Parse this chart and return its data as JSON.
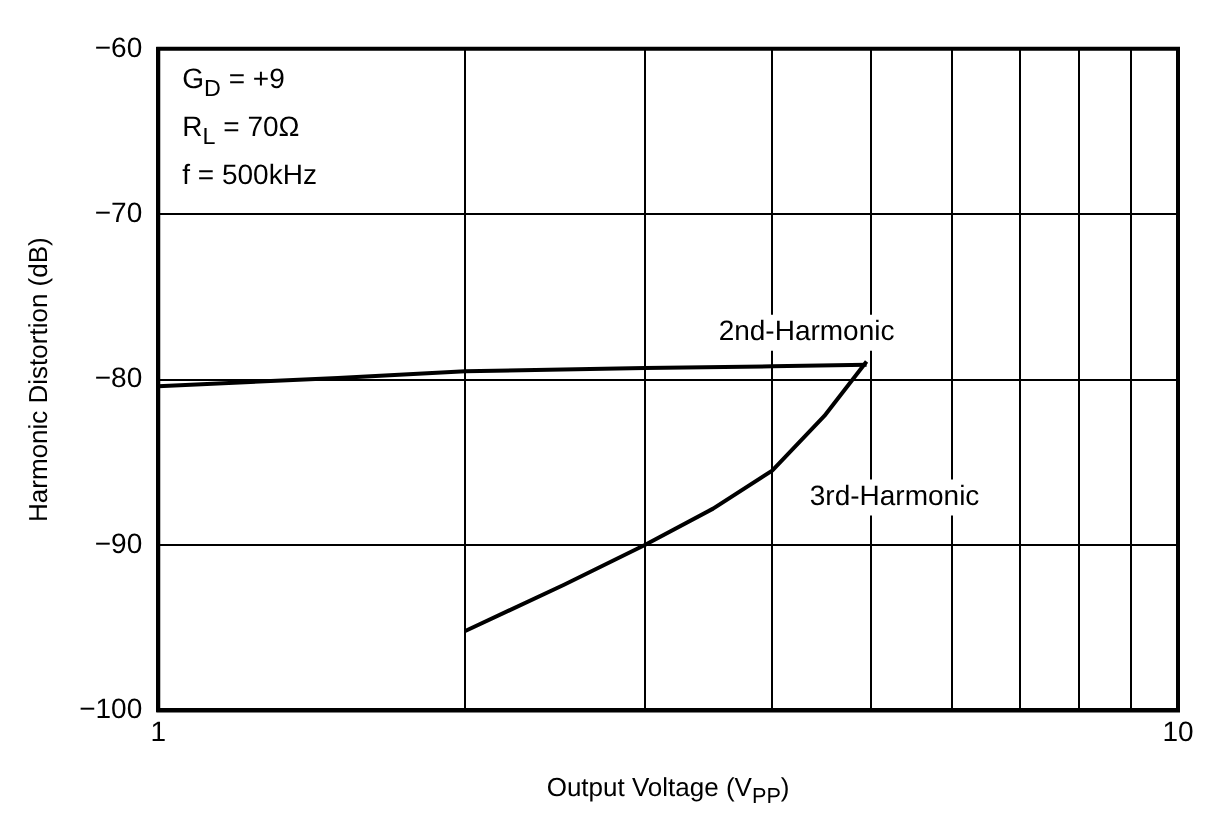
{
  "chart_data": {
    "type": "line",
    "xlabel": "Output Voltage (V$_{PP}$)",
    "ylabel": "Harmonic Distortion (dB)",
    "series": [
      {
        "name": "2nd-Harmonic",
        "color": "#000000",
        "x": [
          1,
          1.5,
          2,
          3,
          4,
          4.95
        ],
        "values": [
          -80.4,
          -79.9,
          -79.5,
          -79.3,
          -79.2,
          -79.1
        ]
      },
      {
        "name": "3rd-Harmonic",
        "color": "#000000",
        "x": [
          2,
          2.5,
          3,
          3.5,
          4,
          4.5,
          4.95
        ],
        "values": [
          -95.2,
          -92.4,
          -90,
          -87.8,
          -85.5,
          -82.2,
          -78.9
        ]
      }
    ],
    "xlim": [
      1,
      10
    ],
    "ylim": [
      -100,
      -60
    ],
    "xticks": [
      1,
      {
        "value": 2,
        "label": null
      },
      {
        "value": 3,
        "label": null
      },
      {
        "value": 4,
        "label": null
      },
      {
        "value": 5,
        "label": null
      },
      {
        "value": 6,
        "label": null
      },
      {
        "value": 7,
        "label": null
      },
      {
        "value": 8,
        "label": null
      },
      {
        "value": 9,
        "label": null
      },
      10
    ],
    "yticks": [
      -100,
      -90,
      -80,
      -70,
      -60
    ],
    "log": "x",
    "grid": true,
    "legend": false,
    "marker": "none",
    "line_style": "solid",
    "annotations": [
      "G$_{D}$ = +9",
      "R$_{L}$ = 70Ω",
      "f = 500kHz"
    ]
  }
}
